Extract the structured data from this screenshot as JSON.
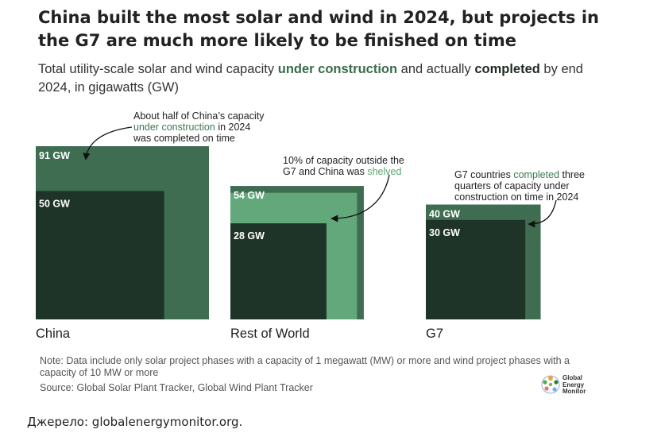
{
  "header": {
    "title": "China built the most solar and wind in 2024, but projects in the G7 are much more likely to be finished on time",
    "subtitle_pre": "Total utility-scale solar and wind capacity ",
    "subtitle_hl1": "under construction",
    "subtitle_mid": " and actually ",
    "subtitle_hl2": "completed",
    "subtitle_post": " by end 2024, in gigawatts (GW)"
  },
  "annotations": {
    "china_l1": "About half of China’s capacity",
    "china_l2a": "under construction",
    "china_l2b": " in 2024",
    "china_l3": "was completed on time",
    "row_l1": "10% of capacity outside the",
    "row_l2a": "G7 and China was ",
    "row_l2b": "shelved",
    "g7_l1a": "G7 countries ",
    "g7_l1b": "completed",
    "g7_l1c": " three",
    "g7_l2": "quarters of capacity under",
    "g7_l3": "construction on time in 2024"
  },
  "chart_data": {
    "type": "nested-square",
    "unit": "GW",
    "categories": [
      "China",
      "Rest of World",
      "G7"
    ],
    "series": [
      {
        "name": "under construction",
        "values": [
          91,
          54,
          40
        ],
        "labels": [
          "91 GW",
          "54 GW",
          "40 GW"
        ]
      },
      {
        "name": "completed",
        "values": [
          50,
          28,
          30
        ],
        "labels": [
          "50 GW",
          "28 GW",
          "30 GW"
        ]
      },
      {
        "name": "shelved",
        "values": [
          null,
          5.4,
          null
        ]
      }
    ],
    "colors": {
      "under_construction": "#3e6d51",
      "completed": "#1e3428",
      "shelved": "#62a87a"
    }
  },
  "footer": {
    "note": "Note: Data include only solar project phases with a capacity of 1 megawatt (MW) or more and wind project phases with a capacity of 10 MW or more",
    "source": "Source: Global Solar Plant Tracker, Global Wind Plant Tracker",
    "logo_line1": "Global",
    "logo_line2": "Energy",
    "logo_line3": "Monitor"
  },
  "credit": "Джерело: globalenergymonitor.org."
}
